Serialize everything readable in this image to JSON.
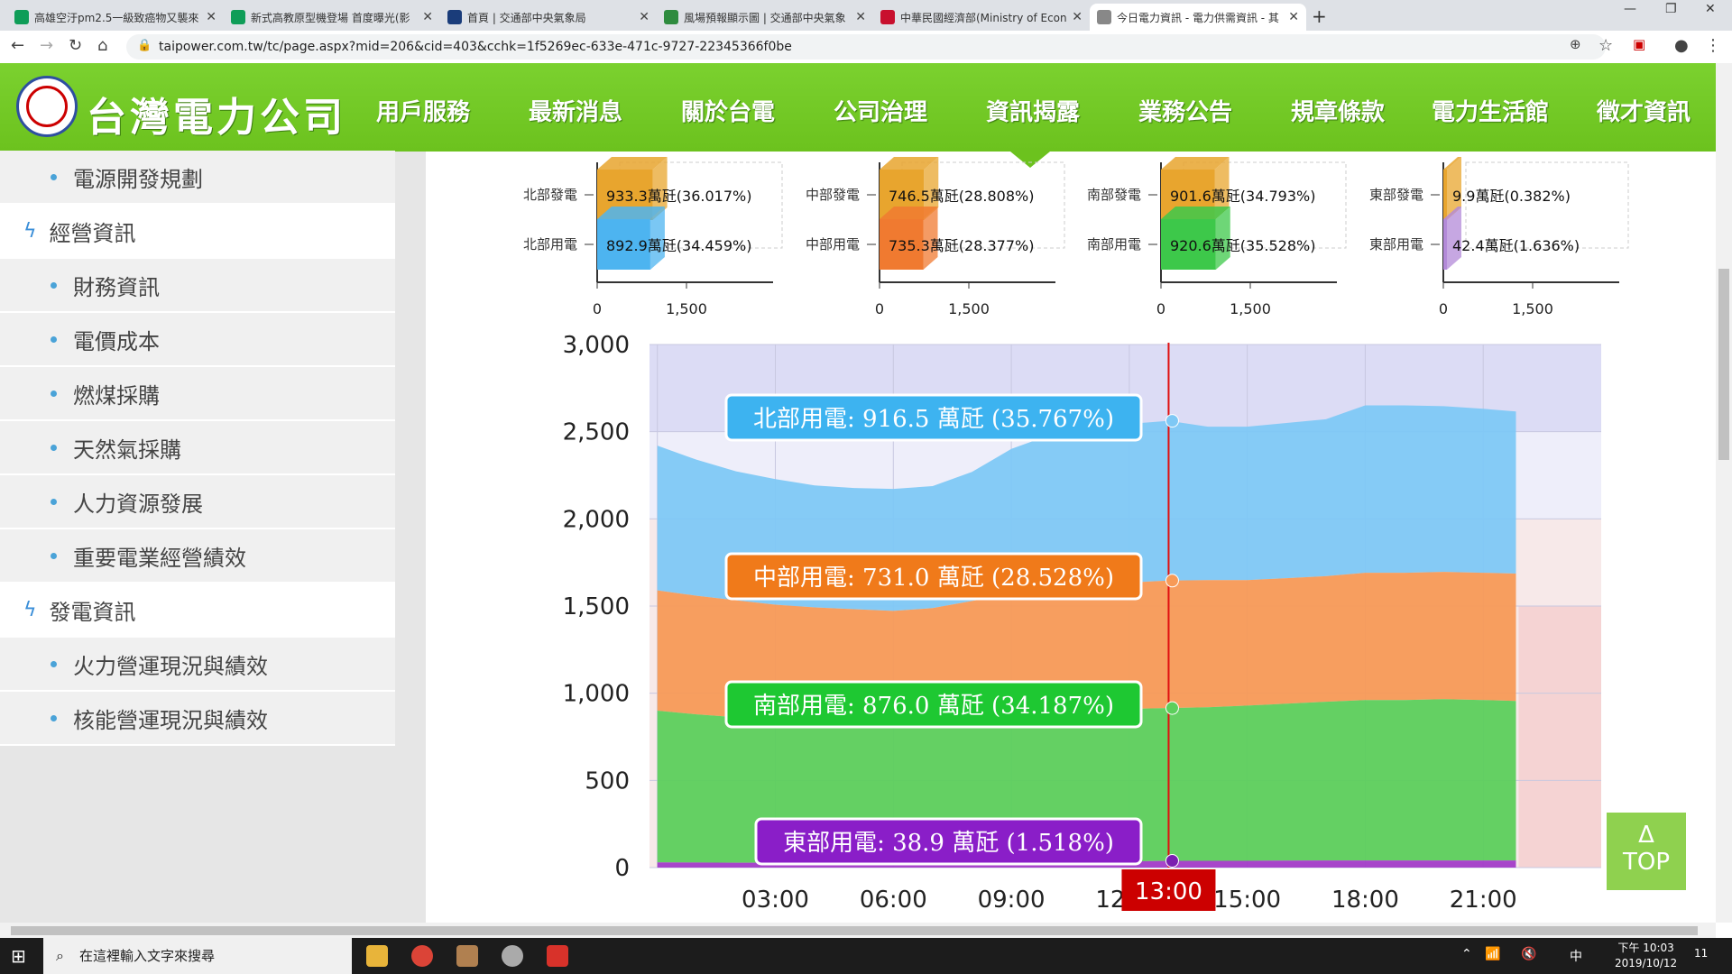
{
  "browser": {
    "tabs": [
      {
        "title": "高雄空汙pm2.5一級致癌物又襲來",
        "icon_color": "#0f9d58",
        "active": false
      },
      {
        "title": "新式高教原型機登場 首度曝光(影",
        "icon_color": "#0f9d58",
        "active": false
      },
      {
        "title": "首頁 | 交通部中央氣象局",
        "icon_color": "#1a3c7a",
        "active": false
      },
      {
        "title": "風場預報顯示圖 | 交通部中央氣象",
        "icon_color": "#2e8b3e",
        "active": false
      },
      {
        "title": "中華民國經濟部(Ministry of Econ",
        "icon_color": "#c8102e",
        "active": false
      },
      {
        "title": "今日電力資訊 - 電力供需資訊 - 其",
        "icon_color": "#888888",
        "active": true
      }
    ],
    "url": "taipower.com.tw/tc/page.aspx?mid=206&cid=403&cchk=1f5269ec-633e-471c-9727-22345366f0be"
  },
  "header": {
    "logo_text": "台灣電力公司",
    "menu": [
      "用戶服務",
      "最新消息",
      "關於台電",
      "公司治理",
      "資訊揭露",
      "業務公告",
      "規章條款",
      "電力生活館",
      "徵才資訊"
    ]
  },
  "sidebar": {
    "items": [
      {
        "label": "電源開發規劃",
        "type": "sub"
      },
      {
        "label": "經營資訊",
        "type": "section"
      },
      {
        "label": "財務資訊",
        "type": "sub"
      },
      {
        "label": "電價成本",
        "type": "sub"
      },
      {
        "label": "燃煤採購",
        "type": "sub"
      },
      {
        "label": "天然氣採購",
        "type": "sub"
      },
      {
        "label": "人力資源發展",
        "type": "sub"
      },
      {
        "label": "重要電業經營績效",
        "type": "sub"
      },
      {
        "label": "發電資訊",
        "type": "section"
      },
      {
        "label": "火力營運現況與績效",
        "type": "sub"
      },
      {
        "label": "核能營運現況與績效",
        "type": "sub"
      }
    ]
  },
  "top_button": {
    "arrow": "Δ",
    "label": "TOP"
  },
  "taskbar": {
    "search_placeholder": "在這裡輸入文字來搜尋",
    "time": "下午 10:03",
    "date": "2019/10/12",
    "ime": "中",
    "notifications": "11"
  },
  "chart_data": [
    {
      "type": "bar",
      "region": "北部",
      "color": "#e8a52e",
      "color2": "#4db4f0",
      "categories": [
        "北部發電",
        "北部用電"
      ],
      "values": [
        933.3,
        892.9
      ],
      "labels": [
        "933.3萬瓩(36.017%)",
        "892.9萬瓩(34.459%)"
      ],
      "xticks": [
        "0",
        "1,500"
      ],
      "xlim": [
        0,
        2100
      ]
    },
    {
      "type": "bar",
      "region": "中部",
      "color": "#e8a52e",
      "color2": "#f07a30",
      "categories": [
        "中部發電",
        "中部用電"
      ],
      "values": [
        746.5,
        735.3
      ],
      "labels": [
        "746.5萬瓩(28.808%)",
        "735.3萬瓩(28.377%)"
      ],
      "xticks": [
        "0",
        "1,500"
      ],
      "xlim": [
        0,
        2100
      ]
    },
    {
      "type": "bar",
      "region": "南部",
      "color": "#e8a52e",
      "color2": "#3dc84a",
      "categories": [
        "南部發電",
        "南部用電"
      ],
      "values": [
        901.6,
        920.6
      ],
      "labels": [
        "901.6萬瓩(34.793%)",
        "920.6萬瓩(35.528%)"
      ],
      "xticks": [
        "0",
        "1,500"
      ],
      "xlim": [
        0,
        2100
      ]
    },
    {
      "type": "bar",
      "region": "東部",
      "color": "#e8a52e",
      "color2": "#b38ad8",
      "categories": [
        "東部發電",
        "東部用電"
      ],
      "values": [
        9.9,
        42.4
      ],
      "labels": [
        "9.9萬瓩(0.382%)",
        "42.4萬瓩(1.636%)"
      ],
      "xticks": [
        "0",
        "1,500"
      ],
      "xlim": [
        0,
        2100
      ]
    },
    {
      "type": "area",
      "stacked": true,
      "ylim": [
        0,
        3000
      ],
      "yticks": [
        "0",
        "500",
        "1,000",
        "1,500",
        "2,000",
        "2,500",
        "3,000"
      ],
      "xticks": [
        "03:00",
        "06:00",
        "09:00",
        "12:00",
        "15:00",
        "18:00",
        "21:00"
      ],
      "x": [
        "00:00",
        "01:00",
        "02:00",
        "03:00",
        "04:00",
        "05:00",
        "06:00",
        "07:00",
        "08:00",
        "09:00",
        "10:00",
        "11:00",
        "12:00",
        "13:00",
        "14:00",
        "15:00",
        "16:00",
        "17:00",
        "18:00",
        "19:00",
        "20:00",
        "21:00",
        "21:50"
      ],
      "series": [
        {
          "name": "東部用電",
          "color": "#a23cc8",
          "values": [
            30,
            29,
            28,
            28,
            27,
            27,
            27,
            28,
            29,
            31,
            32,
            33,
            35,
            38.9,
            39,
            39,
            40,
            41,
            41,
            41,
            41,
            41,
            41
          ]
        },
        {
          "name": "南部用電",
          "color": "#5ccf5c",
          "values": [
            870,
            850,
            835,
            820,
            810,
            805,
            800,
            805,
            830,
            850,
            860,
            870,
            875,
            876,
            880,
            890,
            900,
            910,
            920,
            920,
            925,
            920,
            915
          ]
        },
        {
          "name": "中部用電",
          "color": "#f79a57",
          "values": [
            690,
            680,
            670,
            660,
            655,
            650,
            645,
            655,
            670,
            690,
            710,
            720,
            725,
            731,
            730,
            720,
            720,
            720,
            730,
            730,
            730,
            730,
            730
          ]
        },
        {
          "name": "北部用電",
          "color": "#7ec8f5",
          "values": [
            830,
            780,
            740,
            720,
            700,
            695,
            700,
            700,
            740,
            830,
            880,
            900,
            910,
            916.5,
            880,
            880,
            890,
            900,
            960,
            960,
            950,
            940,
            930
          ]
        }
      ],
      "cursor_label": "13:00",
      "tooltips": [
        {
          "name": "北部用電",
          "text": "北部用電: 916.5 萬瓩 (35.767%)",
          "color": "#3db3f0"
        },
        {
          "name": "中部用電",
          "text": "中部用電: 731.0 萬瓩 (28.528%)",
          "color": "#f07a1a"
        },
        {
          "name": "南部用電",
          "text": "南部用電: 876.0 萬瓩 (34.187%)",
          "color": "#1ec832"
        },
        {
          "name": "東部用電",
          "text": "東部用電: 38.9 萬瓩 (1.518%)",
          "color": "#8a1ec8"
        }
      ]
    }
  ]
}
